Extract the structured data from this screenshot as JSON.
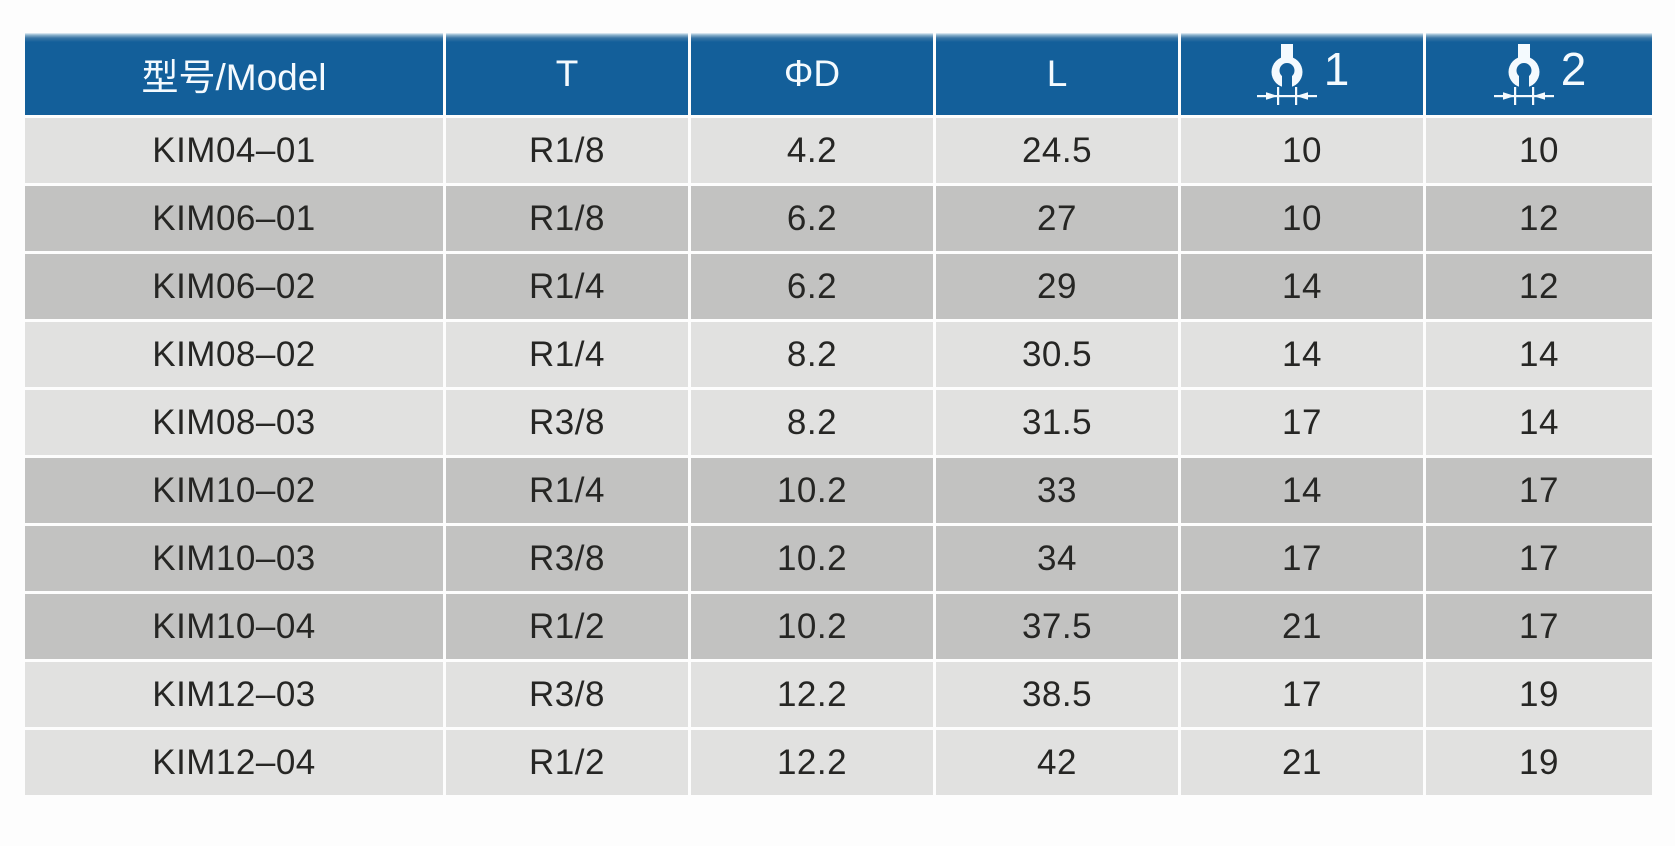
{
  "colors": {
    "header_bg": "#135f9a",
    "header_top_edge": "#8db3cd",
    "header_text": "#f4fafe",
    "row_light": "#e1e1e0",
    "row_dark": "#c2c2c1",
    "cell_text": "#262624",
    "page_bg": "#fdfdfd"
  },
  "table": {
    "columns": [
      {
        "label": "型号/Model",
        "icon": null
      },
      {
        "label": "T",
        "icon": null
      },
      {
        "label": "ΦD",
        "icon": null
      },
      {
        "label": "L",
        "icon": null
      },
      {
        "label": "1",
        "icon": "wrench-flats"
      },
      {
        "label": "2",
        "icon": "wrench-flats"
      }
    ],
    "rows": [
      {
        "shade": "light",
        "cells": [
          "KIM04–01",
          "R1/8",
          "4.2",
          "24.5",
          "10",
          "10"
        ]
      },
      {
        "shade": "dark",
        "cells": [
          "KIM06–01",
          "R1/8",
          "6.2",
          "27",
          "10",
          "12"
        ]
      },
      {
        "shade": "dark",
        "cells": [
          "KIM06–02",
          "R1/4",
          "6.2",
          "29",
          "14",
          "12"
        ]
      },
      {
        "shade": "light",
        "cells": [
          "KIM08–02",
          "R1/4",
          "8.2",
          "30.5",
          "14",
          "14"
        ]
      },
      {
        "shade": "light",
        "cells": [
          "KIM08–03",
          "R3/8",
          "8.2",
          "31.5",
          "17",
          "14"
        ]
      },
      {
        "shade": "dark",
        "cells": [
          "KIM10–02",
          "R1/4",
          "10.2",
          "33",
          "14",
          "17"
        ]
      },
      {
        "shade": "dark",
        "cells": [
          "KIM10–03",
          "R3/8",
          "10.2",
          "34",
          "17",
          "17"
        ]
      },
      {
        "shade": "dark",
        "cells": [
          "KIM10–04",
          "R1/2",
          "10.2",
          "37.5",
          "21",
          "17"
        ]
      },
      {
        "shade": "light",
        "cells": [
          "KIM12–03",
          "R3/8",
          "12.2",
          "38.5",
          "17",
          "19"
        ]
      },
      {
        "shade": "light",
        "cells": [
          "KIM12–04",
          "R1/2",
          "12.2",
          "42",
          "21",
          "19"
        ]
      }
    ]
  }
}
